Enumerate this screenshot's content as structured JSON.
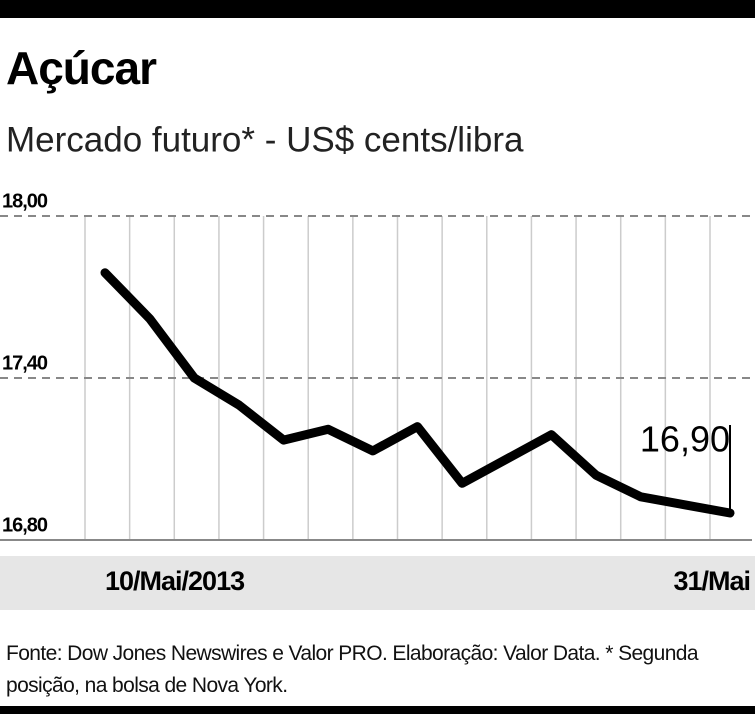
{
  "chart_data": {
    "type": "line",
    "title": "Açúcar",
    "subtitle": "Mercado futuro* - US$ cents/libra",
    "categories": [
      "10/Mai/2013",
      null,
      null,
      null,
      null,
      null,
      null,
      null,
      null,
      null,
      null,
      null,
      null,
      null,
      "31/Mai"
    ],
    "values": [
      17.79,
      17.62,
      17.4,
      17.3,
      17.17,
      17.21,
      17.13,
      17.22,
      17.01,
      17.1,
      17.19,
      17.04,
      16.96,
      16.93,
      16.9
    ],
    "value_labels": [
      null,
      null,
      null,
      null,
      null,
      null,
      null,
      null,
      null,
      null,
      null,
      null,
      null,
      null,
      "16,90"
    ],
    "color": "#000000",
    "ylim": [
      16.8,
      18.0
    ],
    "yticks": [
      {
        "value": 16.8,
        "label": "16,80"
      },
      {
        "value": 17.4,
        "label": "17,40"
      },
      {
        "value": 18.0,
        "label": "18,00"
      }
    ],
    "grid": true,
    "source": "Fonte: Dow Jones Newswires e Valor PRO. Elaboração: Valor Data. * Segunda posição, na bolsa de Nova York."
  }
}
